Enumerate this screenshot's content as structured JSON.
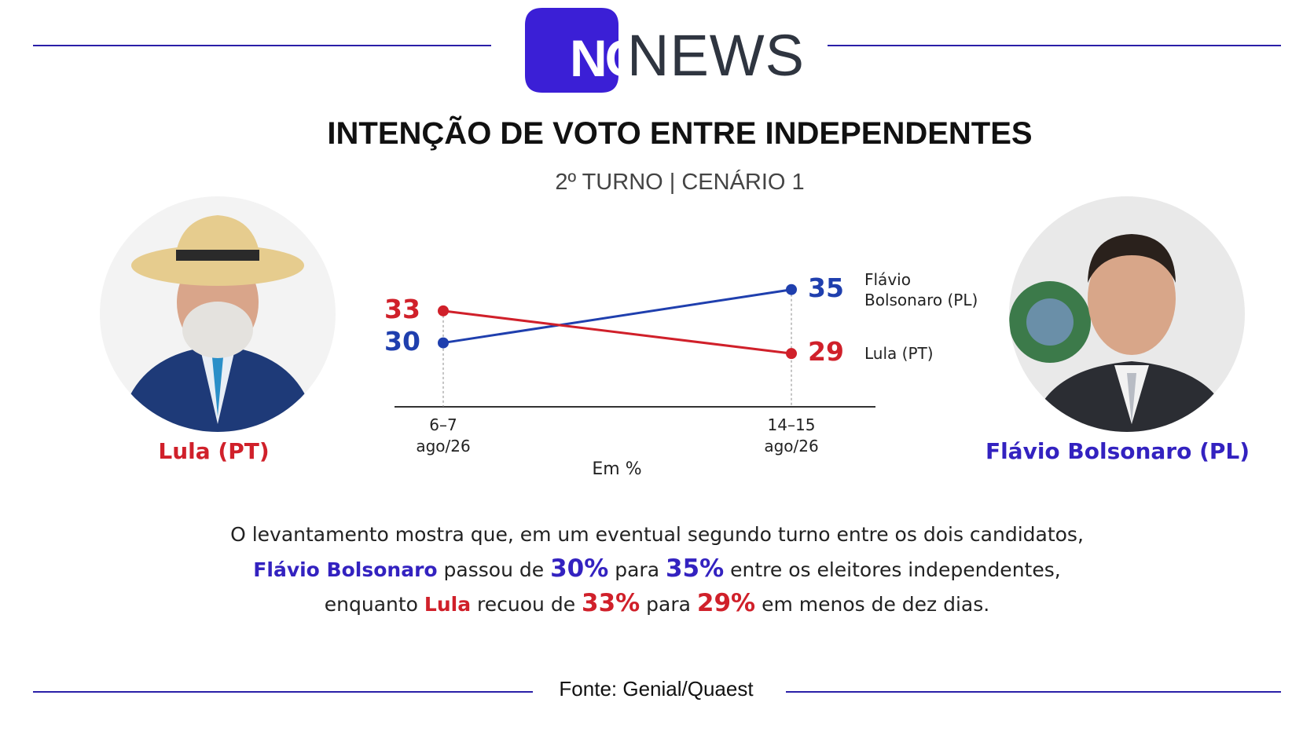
{
  "brand": {
    "logo": "NC",
    "name": "NEWS"
  },
  "chart_data": {
    "type": "line",
    "title": "INTENÇÃO DE VOTO ENTRE INDEPENDENTES",
    "subtitle": "2º TURNO | CENÁRIO 1",
    "categories": [
      "6–7\nago/26",
      "14–15\nago/26"
    ],
    "x_label": "Em %",
    "series": [
      {
        "name": "Flávio Bolsonaro (PL)",
        "color": "#1f3fae",
        "values": [
          30,
          35
        ]
      },
      {
        "name": "Lula (PT)",
        "color": "#d0202a",
        "values": [
          33,
          29
        ]
      }
    ],
    "ylim": [
      24,
      38
    ]
  },
  "candidates": {
    "left": "Lula (PT)",
    "right": "Flávio Bolsonaro (PL)"
  },
  "paragraph": {
    "lines": [
      [
        "O levantamento mostra que, em um eventual segundo turno entre os dois candidatos,"
      ],
      [
        "Flávio Bolsonaro",
        " passou de ",
        "30%",
        " para ",
        "35%",
        " entre os eleitores independentes,"
      ],
      [
        "enquanto ",
        "Lula",
        " recuou de ",
        "33%",
        " para ",
        "29%",
        " em menos de dez dias."
      ]
    ]
  },
  "source": "Fonte: Genial/Quaest"
}
